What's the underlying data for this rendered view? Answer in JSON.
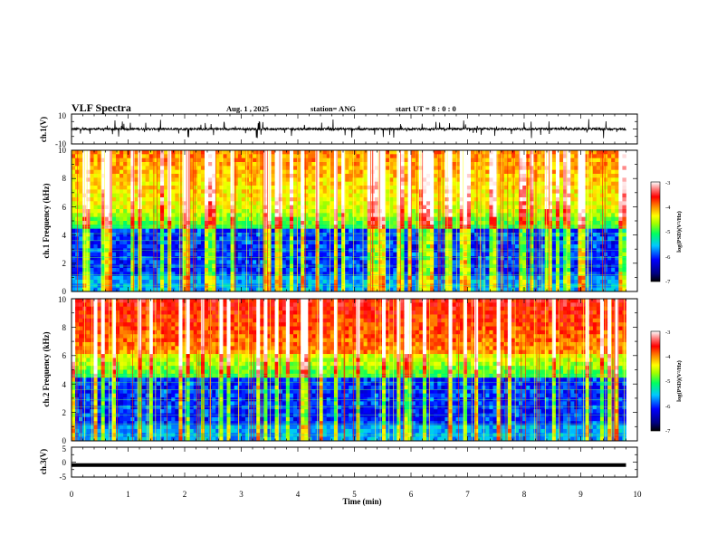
{
  "header": {
    "title": "VLF Spectra",
    "date": "Aug. 1 , 2025",
    "station": "station= ANG",
    "start": "start UT = 8 : 0 : 0"
  },
  "chart_data": [
    {
      "type": "line",
      "panel": "ch1-waveform",
      "ylabel": "ch.1(V)",
      "ylim": [
        -10,
        10
      ],
      "yticks": [
        "10",
        "-10"
      ],
      "xlim": [
        0,
        10
      ],
      "series": [
        {
          "baseline": 0,
          "typical_amplitude": 1.5,
          "spike_max": 6
        }
      ]
    },
    {
      "type": "heatmap",
      "panel": "ch1-spectrogram",
      "ylabel": "ch.1 Frequency (kHz)",
      "ylim": [
        0,
        10
      ],
      "yticks": [
        "0",
        "2",
        "4",
        "6",
        "8",
        "10"
      ],
      "xlim": [
        0,
        9.8
      ],
      "colorbar": {
        "label": "log(PSD)(V²/Hz)",
        "range": [
          -7,
          -3
        ],
        "ticks": [
          "-3",
          "-4",
          "-5",
          "-6",
          "-7"
        ]
      }
    },
    {
      "type": "heatmap",
      "panel": "ch2-spectrogram",
      "ylabel": "ch.2 Frequency (kHz)",
      "ylim": [
        0,
        10
      ],
      "yticks": [
        "0",
        "2",
        "4",
        "6",
        "8",
        "10"
      ],
      "xlim": [
        0,
        9.8
      ],
      "colorbar": {
        "label": "log(PSD)(V²/Hz)",
        "range": [
          -7,
          -3
        ],
        "ticks": [
          "-3",
          "-4",
          "-5",
          "-6",
          "-7"
        ]
      }
    },
    {
      "type": "line",
      "panel": "ch3-waveform",
      "ylabel": "ch.3(V)",
      "ylim": [
        -5,
        5
      ],
      "yticks": [
        "5",
        "0",
        "-5"
      ],
      "xlim": [
        0,
        10
      ],
      "series": [
        {
          "constant": -1.0
        }
      ]
    }
  ],
  "xaxis": {
    "label": "Time (min)",
    "ticks": [
      "0",
      "1",
      "2",
      "3",
      "4",
      "5",
      "6",
      "7",
      "8",
      "9",
      "10"
    ]
  }
}
